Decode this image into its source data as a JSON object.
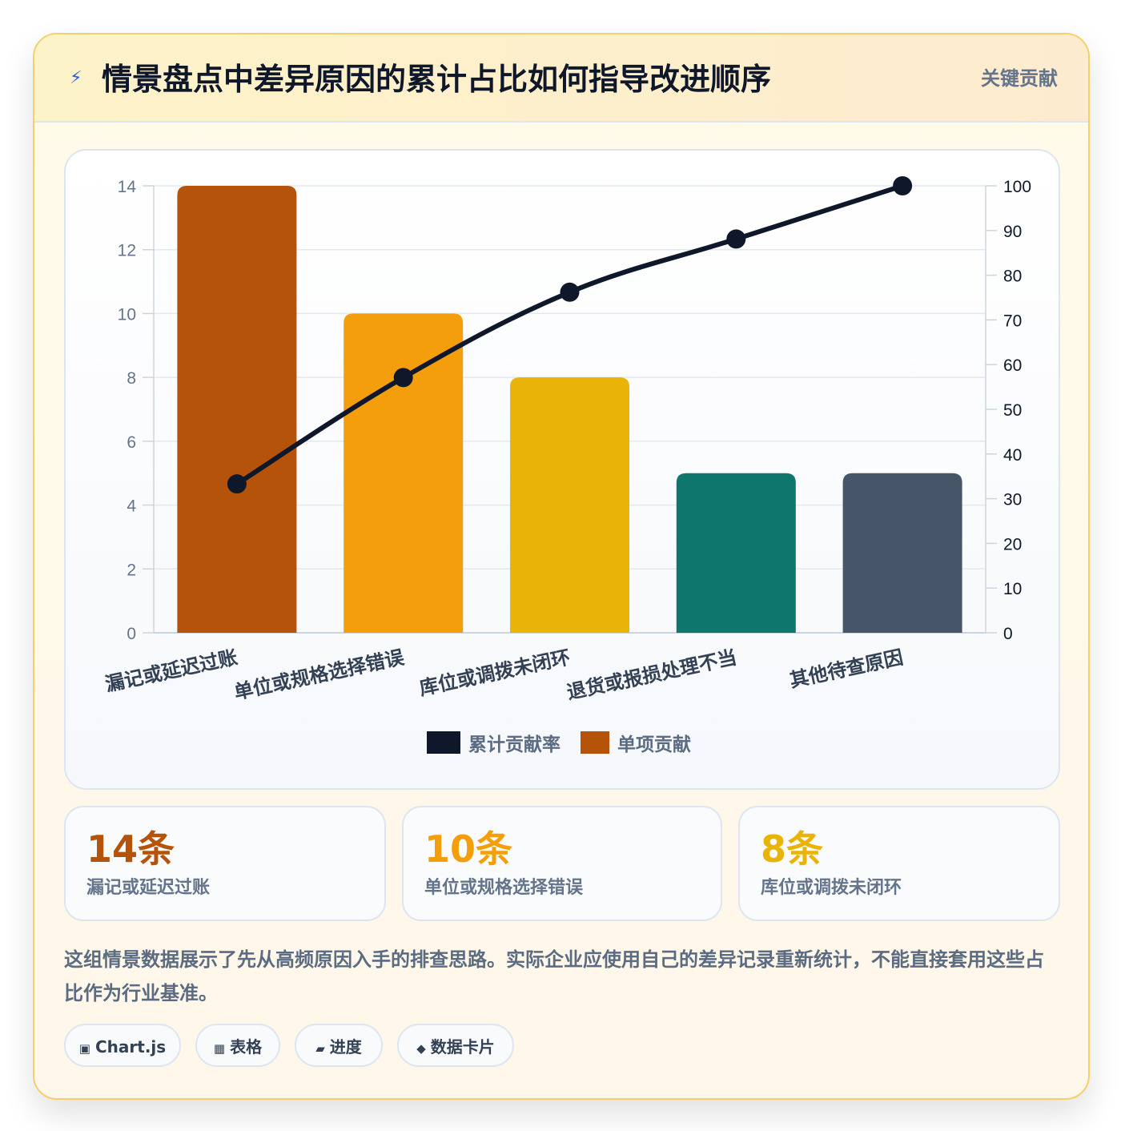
{
  "header": {
    "icon": "lightning-icon",
    "icon_glyph": "⚡",
    "title": "情景盘点中差异原因的累计占比如何指导改进顺序",
    "badge": "关键贡献"
  },
  "chart_data": {
    "type": "bar",
    "categories": [
      "漏记或延迟过账",
      "单位或规格选择错误",
      "库位或调拨未闭环",
      "退货或报损处理不当",
      "其他待查原因"
    ],
    "series": [
      {
        "name": "单项贡献",
        "type": "bar",
        "axis": "left",
        "values": [
          14,
          10,
          8,
          5,
          5
        ],
        "colors": [
          "#b45309",
          "#f59e0b",
          "#eab308",
          "#0f766e",
          "#475569"
        ]
      },
      {
        "name": "累计贡献率",
        "type": "line",
        "axis": "right",
        "values": [
          33.3,
          57.1,
          76.2,
          88.1,
          100
        ],
        "color": "#0f172a"
      }
    ],
    "y_left": {
      "min": 0,
      "max": 14,
      "ticks": [
        "0",
        "2",
        "4",
        "6",
        "8",
        "10",
        "12",
        "14"
      ]
    },
    "y_right": {
      "min": 0,
      "max": 100,
      "ticks": [
        "0",
        "10",
        "20",
        "30",
        "40",
        "50",
        "60",
        "70",
        "80",
        "90",
        "100"
      ]
    },
    "legend": [
      {
        "label": "累计贡献率",
        "color": "#0f172a"
      },
      {
        "label": "单项贡献",
        "color": "#b45309"
      }
    ],
    "legend_position": "bottom",
    "grid": true
  },
  "stats": [
    {
      "value": "14条",
      "label": "漏记或延迟过账",
      "color": "#b45309"
    },
    {
      "value": "10条",
      "label": "单位或规格选择错误",
      "color": "#f59e0b"
    },
    {
      "value": "8条",
      "label": "库位或调拨未闭环",
      "color": "#eab308"
    }
  ],
  "note": "这组情景数据展示了先从高频原因入手的排查思路。实际企业应使用自己的差异记录重新统计，不能直接套用这些占比作为行业基准。",
  "tags": [
    {
      "icon": "square-icon",
      "glyph": "▣",
      "label": "Chart.js"
    },
    {
      "icon": "grid-icon",
      "glyph": "▦",
      "label": "表格"
    },
    {
      "icon": "progress-icon",
      "glyph": "▰",
      "label": "进度"
    },
    {
      "icon": "diamond-icon",
      "glyph": "◆",
      "label": "数据卡片"
    }
  ]
}
